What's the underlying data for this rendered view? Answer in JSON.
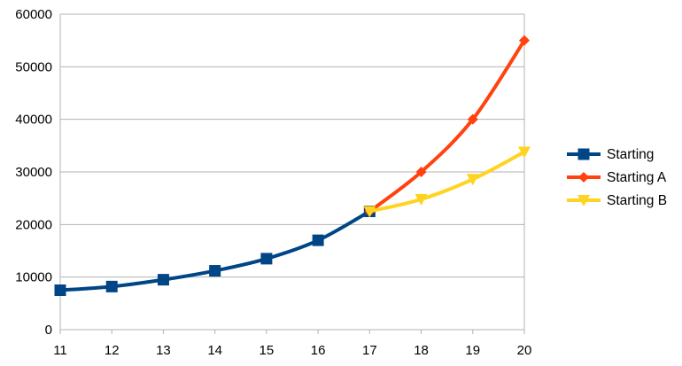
{
  "chart_data": {
    "type": "line",
    "title": "",
    "xlabel": "",
    "ylabel": "",
    "x": [
      11,
      12,
      13,
      14,
      15,
      16,
      17,
      18,
      19,
      20
    ],
    "ylim": [
      0,
      60000
    ],
    "yticks": [
      0,
      10000,
      20000,
      30000,
      40000,
      50000,
      60000
    ],
    "ytick_labels": [
      "0",
      "10000",
      "20000",
      "30000",
      "40000",
      "50000",
      "60000"
    ],
    "xtick_labels": [
      "11",
      "12",
      "13",
      "14",
      "15",
      "16",
      "17",
      "18",
      "19",
      "20"
    ],
    "grid": "horizontal",
    "legend_position": "right",
    "smooth": true,
    "series": [
      {
        "name": "Starting",
        "color": "#004586",
        "marker": "square",
        "x": [
          11,
          12,
          13,
          14,
          15,
          16,
          17
        ],
        "values": [
          7500,
          8200,
          9500,
          11200,
          13500,
          17000,
          22500
        ]
      },
      {
        "name": "Starting A",
        "color": "#ff420e",
        "marker": "diamond",
        "x": [
          17,
          18,
          19,
          20
        ],
        "values": [
          22500,
          30000,
          40000,
          55000
        ]
      },
      {
        "name": "Starting B",
        "color": "#ffd320",
        "marker": "triangle-down",
        "x": [
          17,
          18,
          19,
          20
        ],
        "values": [
          22500,
          24800,
          28600,
          33800
        ]
      }
    ]
  }
}
